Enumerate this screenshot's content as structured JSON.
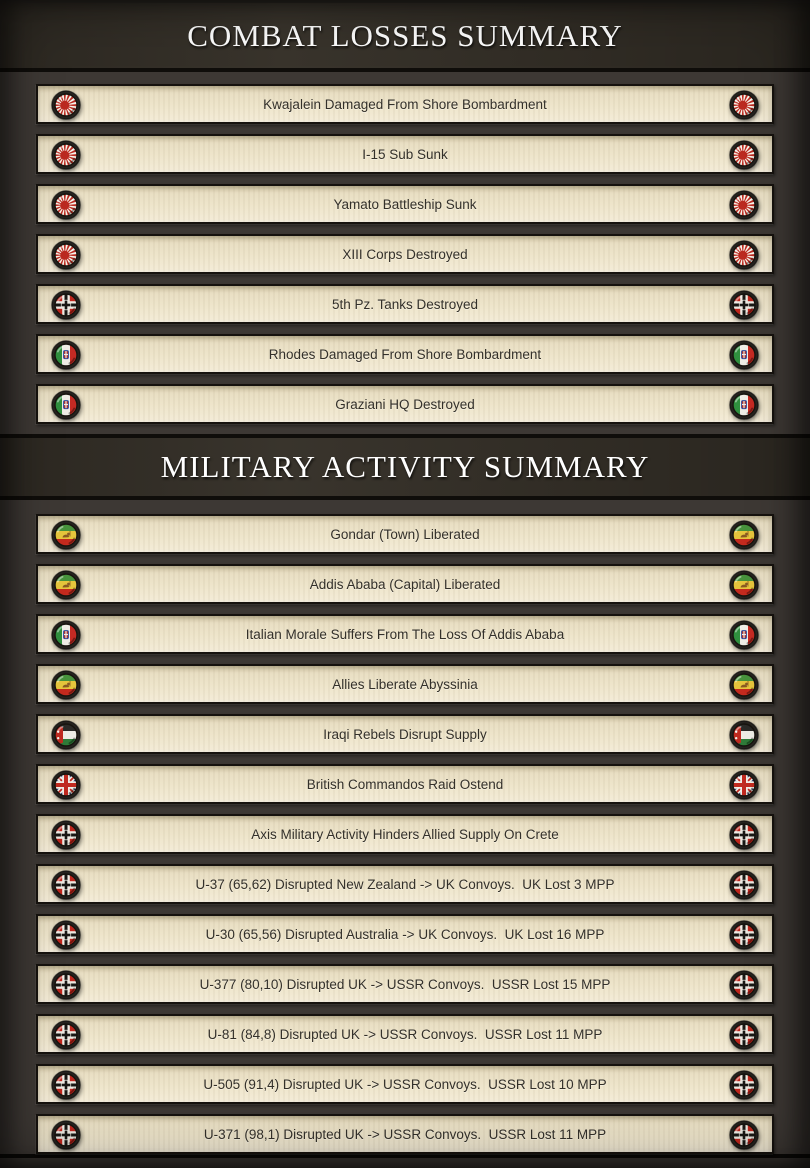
{
  "colors": {
    "page_bg": "#3d3834",
    "header_bg": "#353028",
    "frame_black": "#14110d",
    "row_bg_top": "#d8cdae",
    "row_bg_bottom": "#f4ecd8",
    "row_text": "#33302a",
    "title_text": "#ffffff",
    "roundel_ring": "#26231f"
  },
  "flag_colors": {
    "japan": {
      "field": "#f6f3ea",
      "sun": "#bb2a20"
    },
    "germany": {
      "field": "#bf251c",
      "band": "#eceae2",
      "cross": "#191714",
      "disc": "#eceae2"
    },
    "italy": {
      "green": "#2f8f3e",
      "white": "#efede6",
      "red": "#c62a23",
      "shield": "#b03028",
      "shield_border": "#2c4a9e"
    },
    "ethiopia": {
      "green": "#47923c",
      "yellow": "#e6c53c",
      "red": "#c42a1e",
      "lion": "#8a5a22"
    },
    "iraq": {
      "black": "#2b2a27",
      "white": "#edece5",
      "green": "#2f7b39",
      "trapezoid": "#bf2a20",
      "star": "#f2f1ea"
    },
    "uk": {
      "blue": "#27336e",
      "white": "#efede6",
      "red": "#c02a20"
    }
  },
  "sections": [
    {
      "title": "COMBAT LOSSES SUMMARY",
      "rows": [
        {
          "flag": "japan",
          "text": "Kwajalein Damaged From Shore Bombardment"
        },
        {
          "flag": "japan",
          "text": "I-15 Sub Sunk"
        },
        {
          "flag": "japan",
          "text": "Yamato Battleship Sunk"
        },
        {
          "flag": "japan",
          "text": "XIII Corps Destroyed"
        },
        {
          "flag": "germany",
          "text": "5th Pz. Tanks Destroyed"
        },
        {
          "flag": "italy",
          "text": "Rhodes Damaged From Shore Bombardment"
        },
        {
          "flag": "italy",
          "text": "Graziani HQ Destroyed"
        }
      ]
    },
    {
      "title": "MILITARY ACTIVITY SUMMARY",
      "rows": [
        {
          "flag": "ethiopia",
          "text": "Gondar (Town) Liberated"
        },
        {
          "flag": "ethiopia",
          "text": "Addis Ababa (Capital) Liberated"
        },
        {
          "flag": "italy",
          "text": "Italian Morale Suffers From The Loss Of Addis Ababa"
        },
        {
          "flag": "ethiopia",
          "text": "Allies Liberate Abyssinia"
        },
        {
          "flag": "iraq",
          "text": "Iraqi Rebels Disrupt Supply"
        },
        {
          "flag": "uk",
          "text": "British Commandos Raid Ostend"
        },
        {
          "flag": "germany",
          "text": "Axis Military Activity Hinders Allied Supply On Crete"
        },
        {
          "flag": "germany",
          "text": "U-37 (65,62) Disrupted New Zealand -> UK Convoys.  UK Lost 3 MPP"
        },
        {
          "flag": "germany",
          "text": "U-30 (65,56) Disrupted Australia -> UK Convoys.  UK Lost 16 MPP"
        },
        {
          "flag": "germany",
          "text": "U-377 (80,10) Disrupted UK -> USSR Convoys.  USSR Lost 15 MPP"
        },
        {
          "flag": "germany",
          "text": "U-81 (84,8) Disrupted UK -> USSR Convoys.  USSR Lost 11 MPP"
        },
        {
          "flag": "germany",
          "text": "U-505 (91,4) Disrupted UK -> USSR Convoys.  USSR Lost 10 MPP"
        },
        {
          "flag": "germany",
          "text": "U-371 (98,1) Disrupted UK -> USSR Convoys.  USSR Lost 11 MPP"
        }
      ]
    }
  ]
}
